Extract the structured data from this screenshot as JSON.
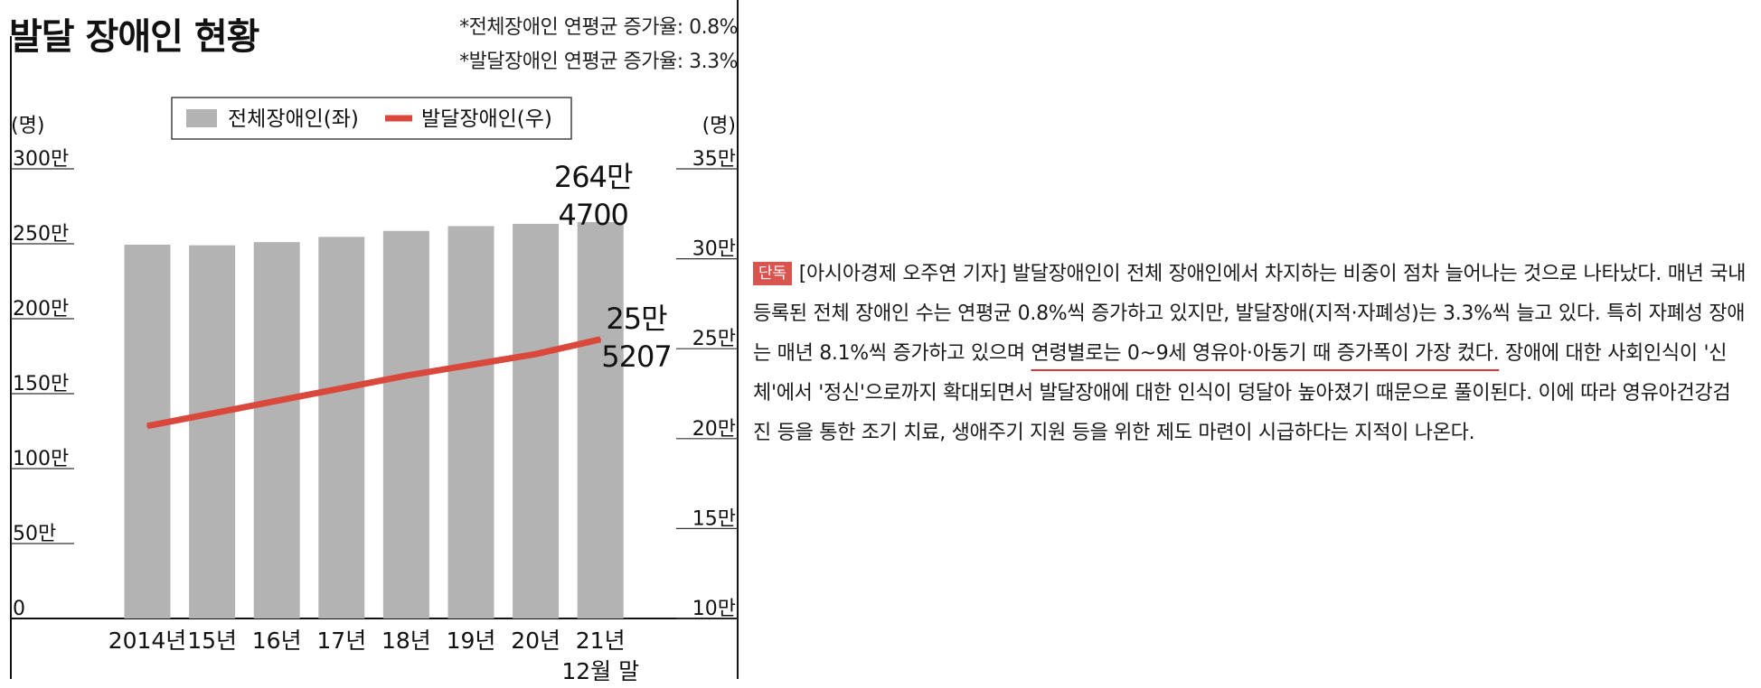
{
  "chart_title": "발달 장애인 현황",
  "notes": [
    "*전체장애인 연평균 증가율: 0.8%",
    "*발달장애인 연평균 증가율: 3.3%"
  ],
  "colors": {
    "bar": "#b3b3b3",
    "line": "#d9483b",
    "axis": "#111111",
    "badge": "#d9534f"
  },
  "chart_data": {
    "type": "bar+line",
    "categories": [
      "2014년",
      "15년",
      "16년",
      "17년",
      "18년",
      "19년",
      "20년",
      "21년\n12월 말"
    ],
    "left_axis": {
      "unit": "(명)",
      "ticks": [
        "0",
        "50만",
        "100만",
        "150만",
        "200만",
        "250만",
        "300만"
      ],
      "range": [
        0,
        3000000
      ]
    },
    "right_axis": {
      "unit": "(명)",
      "ticks": [
        "10만",
        "15만",
        "20만",
        "25만",
        "30만",
        "35만"
      ],
      "range": [
        100000,
        350000
      ]
    },
    "legend": {
      "position": "top",
      "items": [
        "전체장애인(좌)",
        "발달장애인(우)"
      ]
    },
    "series": [
      {
        "name": "전체장애인(좌)",
        "type": "bar",
        "axis": "left",
        "values": [
          2494000,
          2490000,
          2511000,
          2546000,
          2586000,
          2618000,
          2633000,
          2644700
        ]
      },
      {
        "name": "발달장애인(우)",
        "type": "line",
        "axis": "right",
        "values": [
          207000,
          214000,
          221000,
          228000,
          235000,
          241000,
          247000,
          255207
        ]
      }
    ],
    "annotations": [
      {
        "series": 0,
        "index": 7,
        "lines": [
          "264만",
          "4700"
        ]
      },
      {
        "series": 1,
        "index": 7,
        "lines": [
          "25만",
          "5207"
        ]
      }
    ]
  },
  "article": {
    "badge": "단독",
    "text_before": "[아시아경제 오주연 기자] 발달장애인이 전체 장애인에서 차지하는 비중이 점차 늘어나는 것으로 나타났다. 매년 국내 등록된 전체 장애인 수는 연평균 0.8%씩 증가하고 있지만, 발달장애(지적·자폐성)는 3.3%씩 늘고 있다. 특히 자폐성 장애는 매년 8.1%씩 증가하고 있으며 ",
    "highlight": "연령별로는 0~9세 영유아·아동기 때 증가폭이 가장 컸다.",
    "text_after": " 장애에 대한 사회인식이 '신체'에서 '정신'으로까지 확대되면서 발달장애에 대한 인식이 덩달아 높아졌기 때문으로 풀이된다. 이에 따라 영유아건강검진 등을 통한 조기 치료, 생애주기 지원 등을 위한 제도 마련이 시급하다는 지적이 나온다."
  }
}
